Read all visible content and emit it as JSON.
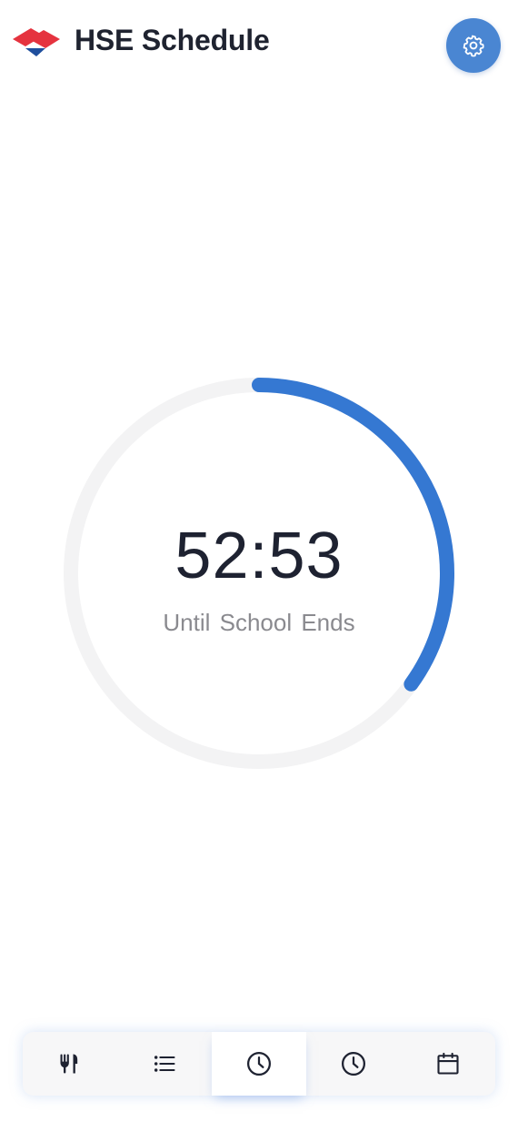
{
  "header": {
    "title": "HSE Schedule",
    "logo_icon": "hse-logo-icon",
    "settings_icon": "gear-icon"
  },
  "timer": {
    "time": "52:53",
    "label": "Until School Ends",
    "progress_fraction": 0.35
  },
  "bottom_nav": {
    "items": [
      {
        "icon": "utensils-icon",
        "active": false
      },
      {
        "icon": "list-icon",
        "active": false
      },
      {
        "icon": "clock-icon",
        "active": true
      },
      {
        "icon": "clock-icon",
        "active": false
      },
      {
        "icon": "calendar-icon",
        "active": false
      }
    ]
  },
  "colors": {
    "accent": "#3578d2",
    "settings_bg": "#4a86d2",
    "track": "#f3f3f4",
    "logo_red": "#e5333f",
    "logo_blue": "#1f4f9d",
    "text_dark": "#1e2231",
    "text_muted": "#8a8a8f"
  }
}
